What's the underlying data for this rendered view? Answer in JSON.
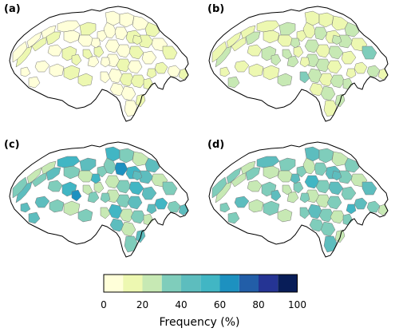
{
  "panels": [
    {
      "label": "(a)",
      "levels": [
        0,
        1,
        0,
        1,
        0,
        1,
        0,
        0,
        1,
        0,
        0,
        1,
        0,
        0,
        1,
        0,
        1,
        0,
        0,
        0,
        1,
        0,
        0,
        1,
        1,
        0,
        1,
        0,
        0,
        1,
        0,
        0,
        1,
        0,
        0,
        1,
        1,
        0,
        0,
        0,
        1,
        0,
        1,
        0,
        1,
        1,
        0,
        0,
        1,
        1,
        0,
        0,
        1,
        1,
        0,
        1
      ]
    },
    {
      "label": "(b)",
      "levels": [
        1,
        2,
        1,
        1,
        1,
        2,
        1,
        1,
        2,
        1,
        1,
        2,
        1,
        1,
        1,
        2,
        2,
        1,
        1,
        1,
        2,
        1,
        2,
        1,
        2,
        1,
        3,
        2,
        1,
        2,
        1,
        2,
        2,
        1,
        2,
        1,
        2,
        1,
        2,
        1,
        2,
        3,
        1,
        2,
        1,
        1,
        2,
        1,
        2,
        2,
        1,
        2,
        2,
        1,
        1,
        2
      ]
    },
    {
      "label": "(c)",
      "levels": [
        3,
        4,
        2,
        3,
        2,
        4,
        5,
        3,
        4,
        2,
        3,
        5,
        4,
        3,
        2,
        4,
        3,
        5,
        3,
        2,
        4,
        3,
        6,
        5,
        4,
        2,
        3,
        2,
        3,
        5,
        4,
        2,
        3,
        4,
        5,
        2,
        3,
        4,
        2,
        3,
        4,
        2,
        5,
        3,
        4,
        2,
        3,
        4,
        6,
        2,
        3,
        5,
        2,
        4,
        3,
        4
      ]
    },
    {
      "label": "(d)",
      "levels": [
        3,
        2,
        3,
        2,
        2,
        3,
        4,
        2,
        3,
        2,
        2,
        3,
        4,
        2,
        3,
        3,
        2,
        4,
        3,
        2,
        3,
        2,
        3,
        4,
        3,
        2,
        4,
        5,
        3,
        4,
        3,
        2,
        2,
        3,
        4,
        3,
        2,
        3,
        3,
        4,
        2,
        3,
        4,
        3,
        2,
        3,
        2,
        3,
        4,
        2,
        3,
        4,
        3,
        5,
        3,
        4
      ]
    }
  ],
  "colorbar": {
    "title": "Frequency (%)",
    "ticks": [
      "0",
      "20",
      "40",
      "60",
      "80",
      "100"
    ],
    "bins": [
      0,
      10,
      20,
      30,
      40,
      50,
      60,
      70,
      80,
      90,
      100
    ],
    "colors": [
      "#ffffd9",
      "#edf8b1",
      "#c7e9b4",
      "#7fcdbb",
      "#5dbdbe",
      "#41b6c4",
      "#1d91c0",
      "#225ea8",
      "#253494",
      "#081d58"
    ]
  }
}
